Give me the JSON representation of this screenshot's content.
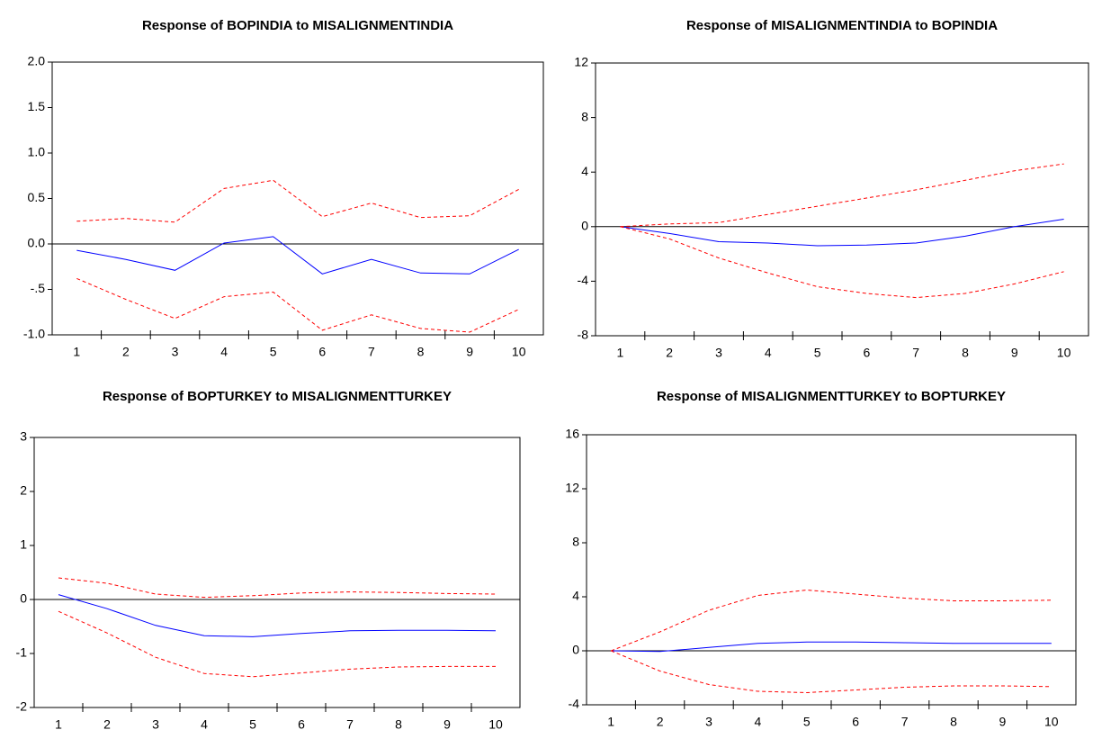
{
  "chart_data": [
    {
      "type": "line",
      "title": "Response of BOPINDIA to MISALIGNMENTINDIA",
      "categories": [
        "1",
        "2",
        "3",
        "4",
        "5",
        "6",
        "7",
        "8",
        "9",
        "10"
      ],
      "ylim": [
        -1.0,
        2.0
      ],
      "yticks": [
        {
          "value": -1.0,
          "label": "-1.0"
        },
        {
          "value": -0.5,
          "label": "-.5"
        },
        {
          "value": 0,
          "label": "0.0"
        },
        {
          "value": 0.5,
          "label": "0.5"
        },
        {
          "value": 1.0,
          "label": "1.0"
        },
        {
          "value": 1.5,
          "label": "1.5"
        },
        {
          "value": 2.0,
          "label": "2.0"
        }
      ],
      "reference_line": 0,
      "series": [
        {
          "color": "#0000ff",
          "dashed": false,
          "values": [
            -0.07,
            -0.17,
            -0.29,
            0.01,
            0.08,
            -0.33,
            -0.17,
            -0.32,
            -0.33,
            -0.06
          ]
        },
        {
          "color": "#ff0000",
          "dashed": true,
          "values": [
            0.25,
            0.28,
            0.24,
            0.61,
            0.7,
            0.3,
            0.45,
            0.29,
            0.31,
            0.6
          ]
        },
        {
          "color": "#ff0000",
          "dashed": true,
          "values": [
            -0.38,
            -0.61,
            -0.82,
            -0.58,
            -0.53,
            -0.95,
            -0.78,
            -0.93,
            -0.97,
            -0.72
          ]
        }
      ]
    },
    {
      "type": "line",
      "title": "Response of MISALIGNMENTINDIA to BOPINDIA",
      "categories": [
        "1",
        "2",
        "3",
        "4",
        "5",
        "6",
        "7",
        "8",
        "9",
        "10"
      ],
      "ylim": [
        -8,
        12
      ],
      "yticks": [
        -8,
        -4,
        0,
        4,
        8,
        12
      ],
      "reference_line": 0,
      "series": [
        {
          "color": "#0000ff",
          "dashed": false,
          "values": [
            0,
            -0.5,
            -1.1,
            -1.2,
            -1.4,
            -1.35,
            -1.2,
            -0.7,
            0,
            0.55
          ]
        },
        {
          "color": "#ff0000",
          "dashed": true,
          "values": [
            0,
            0.2,
            0.3,
            0.9,
            1.5,
            2.1,
            2.7,
            3.4,
            4.1,
            4.6
          ]
        },
        {
          "color": "#ff0000",
          "dashed": true,
          "values": [
            0,
            -0.9,
            -2.3,
            -3.4,
            -4.4,
            -4.9,
            -5.2,
            -4.9,
            -4.2,
            -3.3
          ]
        }
      ]
    },
    {
      "type": "line",
      "title": "Response of BOPTURKEY to MISALIGNMENTTURKEY",
      "categories": [
        "1",
        "2",
        "3",
        "4",
        "5",
        "6",
        "7",
        "8",
        "9",
        "10"
      ],
      "ylim": [
        -2,
        3
      ],
      "yticks": [
        -2,
        -1,
        0,
        1,
        2,
        3
      ],
      "reference_line": 0,
      "series": [
        {
          "color": "#0000ff",
          "dashed": false,
          "values": [
            0.09,
            -0.17,
            -0.48,
            -0.67,
            -0.69,
            -0.63,
            -0.58,
            -0.57,
            -0.57,
            -0.58
          ]
        },
        {
          "color": "#ff0000",
          "dashed": true,
          "values": [
            0.4,
            0.3,
            0.1,
            0.04,
            0.07,
            0.12,
            0.14,
            0.13,
            0.11,
            0.1
          ]
        },
        {
          "color": "#ff0000",
          "dashed": true,
          "values": [
            -0.22,
            -0.62,
            -1.07,
            -1.37,
            -1.43,
            -1.36,
            -1.29,
            -1.25,
            -1.24,
            -1.24
          ]
        }
      ]
    },
    {
      "type": "line",
      "title": "Response of MISALIGNMENTTURKEY to BOPTURKEY",
      "categories": [
        "1",
        "2",
        "3",
        "4",
        "5",
        "6",
        "7",
        "8",
        "9",
        "10"
      ],
      "ylim": [
        -4,
        16
      ],
      "yticks": [
        -4,
        0,
        4,
        8,
        12,
        16
      ],
      "reference_line": 0,
      "series": [
        {
          "color": "#0000ff",
          "dashed": false,
          "values": [
            0,
            -0.05,
            0.25,
            0.55,
            0.65,
            0.65,
            0.6,
            0.55,
            0.55,
            0.55
          ]
        },
        {
          "color": "#ff0000",
          "dashed": true,
          "values": [
            0,
            1.4,
            3.0,
            4.1,
            4.5,
            4.2,
            3.9,
            3.7,
            3.7,
            3.75
          ]
        },
        {
          "color": "#ff0000",
          "dashed": true,
          "values": [
            0,
            -1.5,
            -2.5,
            -3.0,
            -3.1,
            -2.9,
            -2.7,
            -2.6,
            -2.6,
            -2.65
          ]
        }
      ]
    }
  ]
}
